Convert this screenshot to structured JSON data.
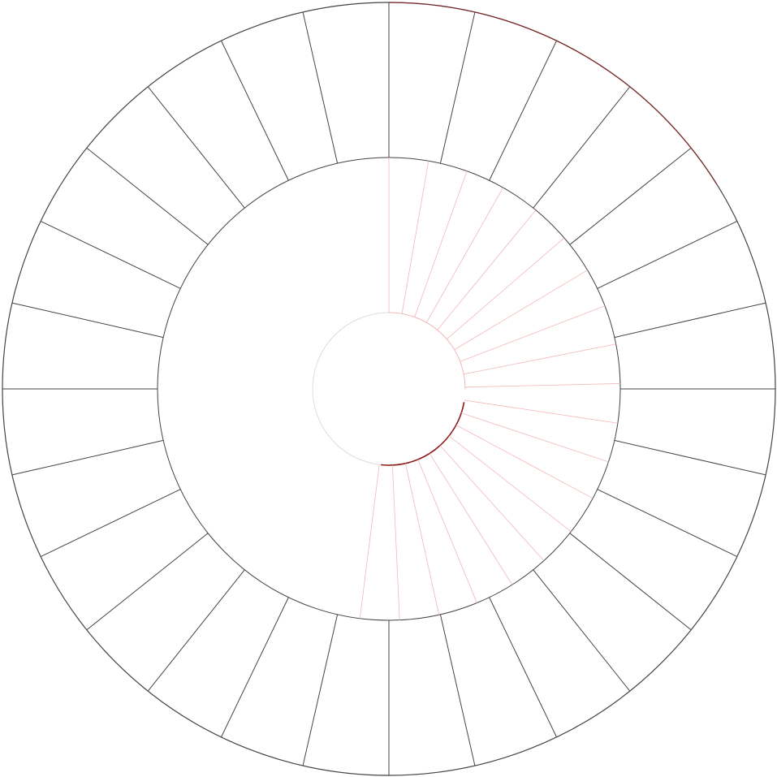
{
  "diagram": {
    "outer_segments": 28,
    "inner_spokes": 20,
    "start_angle_deg": 0,
    "arc_sweep_deg": 180,
    "colors": {
      "background": "#ffffff",
      "ring_line": "#444444",
      "highlight": "#8b1a1a",
      "spoke_faint": "#f2b8b8",
      "hub_faint": "#dddddd"
    }
  }
}
